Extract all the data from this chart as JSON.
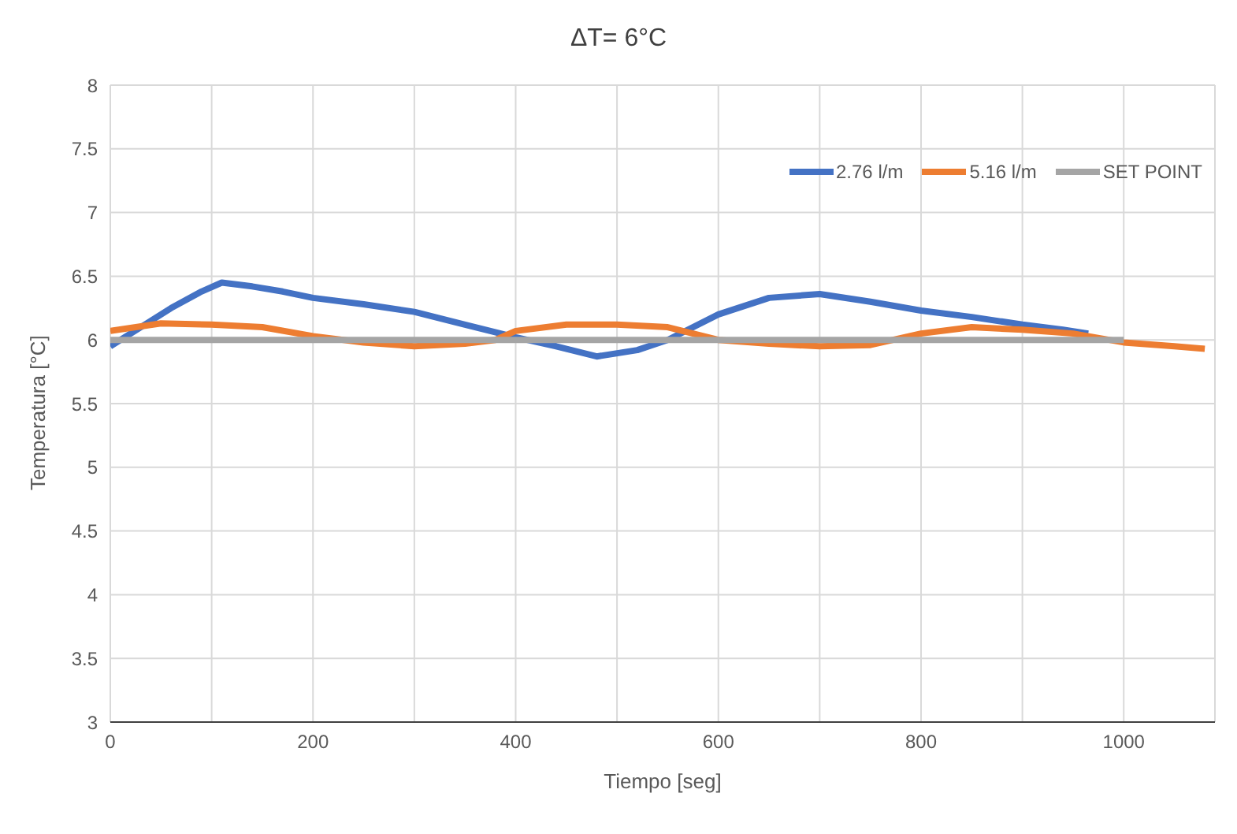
{
  "chart_data": {
    "type": "line",
    "title": "ΔT= 6°C",
    "xlabel": "Tiempo [seg]",
    "ylabel": "Temperatura [°C]",
    "xlim": [
      0,
      1090
    ],
    "xticks": [
      0,
      {
        "value": 100,
        "label": null
      },
      200,
      {
        "value": 300,
        "label": null
      },
      400,
      {
        "value": 500,
        "label": null
      },
      600,
      {
        "value": 700,
        "label": null
      },
      800,
      {
        "value": 900,
        "label": null
      },
      1000
    ],
    "ylim": [
      3,
      8
    ],
    "yticks": [
      3,
      3.5,
      4,
      4.5,
      5,
      5.5,
      6,
      6.5,
      7,
      7.5,
      8
    ],
    "grid": true,
    "legend": "top right",
    "marker": "none",
    "line_style": "solid",
    "series": [
      {
        "name": "2.76 l/m",
        "color": "#4472c4",
        "x": [
          0,
          30,
          60,
          90,
          110,
          140,
          170,
          200,
          250,
          300,
          350,
          400,
          440,
          480,
          520,
          550,
          600,
          650,
          700,
          750,
          800,
          850,
          900,
          940,
          965
        ],
        "values": [
          5.95,
          6.1,
          6.25,
          6.38,
          6.45,
          6.42,
          6.38,
          6.33,
          6.28,
          6.22,
          6.12,
          6.02,
          5.95,
          5.87,
          5.92,
          6.0,
          6.2,
          6.33,
          6.36,
          6.3,
          6.23,
          6.18,
          6.12,
          6.08,
          6.05
        ]
      },
      {
        "name": "5.16 l/m",
        "color": "#ed7d31",
        "x": [
          0,
          50,
          100,
          150,
          200,
          250,
          300,
          350,
          380,
          400,
          450,
          500,
          550,
          600,
          650,
          700,
          750,
          800,
          850,
          900,
          950,
          1000,
          1050,
          1080
        ],
        "values": [
          6.07,
          6.13,
          6.12,
          6.1,
          6.03,
          5.98,
          5.95,
          5.97,
          6.0,
          6.07,
          6.12,
          6.12,
          6.1,
          6.0,
          5.97,
          5.95,
          5.96,
          6.05,
          6.1,
          6.08,
          6.05,
          5.98,
          5.95,
          5.93
        ]
      },
      {
        "name": "SET POINT",
        "color": "#a5a5a5",
        "x": [
          0,
          1000
        ],
        "values": [
          6,
          6
        ]
      }
    ]
  }
}
